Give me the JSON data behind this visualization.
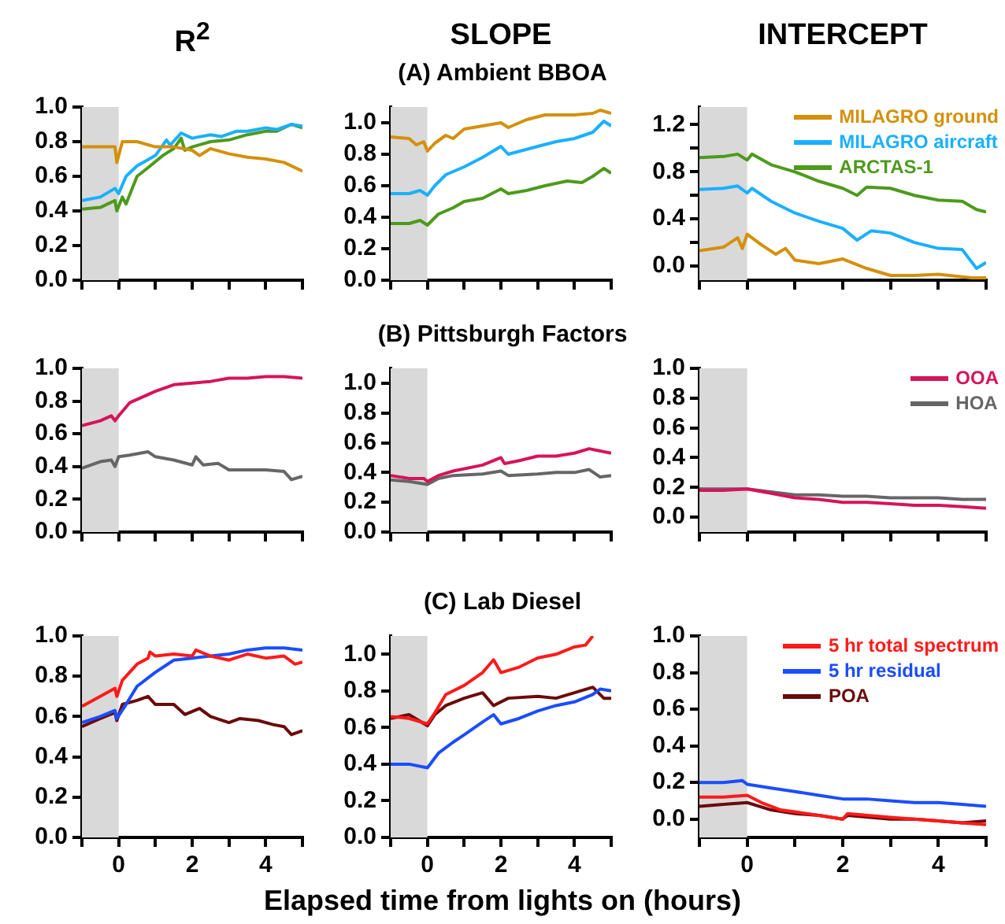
{
  "chart_data": [
    {
      "type": "line",
      "title": "R$^{2}$",
      "xlim": [
        -1,
        5
      ],
      "xticks": [
        {
          "value": -1,
          "label": null
        },
        {
          "value": 0,
          "label": null
        },
        {
          "value": 1,
          "label": null
        },
        {
          "value": 2,
          "label": null
        },
        {
          "value": 3,
          "label": null
        },
        {
          "value": 4,
          "label": null
        },
        {
          "value": 5,
          "label": null
        }
      ],
      "ylim": [
        0,
        1
      ],
      "yticks": [
        {
          "value": 0,
          "label": "0.0"
        },
        {
          "value": 0.2,
          "label": "0.2"
        },
        {
          "value": 0.4,
          "label": "0.4"
        },
        {
          "value": 0.6,
          "label": "0.6"
        },
        {
          "value": 0.8,
          "label": "0.8"
        },
        {
          "value": 1,
          "label": "1.0"
        }
      ],
      "tick_labels": "y",
      "grid": false,
      "legend": false,
      "marker": "none",
      "line_style": "solid",
      "bands": [
        {
          "axis": "x",
          "from": -1,
          "to": 0,
          "color": "#d9d9d9"
        }
      ],
      "series": [
        {
          "color": "#d4900a",
          "x": [
            -1,
            -0.5,
            -0.1,
            -0.05,
            0.1,
            0.5,
            1,
            1.5,
            2,
            2.2,
            2.5,
            3,
            3.5,
            4,
            4.5,
            5
          ],
          "values": [
            0.77,
            0.77,
            0.77,
            0.68,
            0.8,
            0.8,
            0.77,
            0.77,
            0.75,
            0.72,
            0.76,
            0.73,
            0.71,
            0.7,
            0.68,
            0.63
          ]
        },
        {
          "color": "#1ab0ff",
          "x": [
            -1,
            -0.5,
            -0.1,
            0,
            0.2,
            0.5,
            1,
            1.3,
            1.4,
            1.7,
            2,
            2.5,
            2.8,
            3.2,
            3.5,
            4,
            4.3,
            4.7,
            5
          ],
          "values": [
            0.46,
            0.48,
            0.53,
            0.5,
            0.6,
            0.66,
            0.72,
            0.81,
            0.78,
            0.85,
            0.82,
            0.84,
            0.83,
            0.86,
            0.86,
            0.88,
            0.87,
            0.9,
            0.89
          ]
        },
        {
          "color": "#4d9a1c",
          "x": [
            -1,
            -0.5,
            -0.1,
            -0.05,
            0.1,
            0.2,
            0.5,
            0.8,
            1.2,
            1.5,
            1.7,
            1.8,
            2,
            2.5,
            3,
            3.5,
            4,
            4.3,
            4.7,
            5
          ],
          "values": [
            0.41,
            0.42,
            0.46,
            0.4,
            0.48,
            0.44,
            0.6,
            0.65,
            0.72,
            0.76,
            0.82,
            0.75,
            0.77,
            0.8,
            0.81,
            0.84,
            0.86,
            0.86,
            0.9,
            0.88
          ]
        }
      ]
    },
    {
      "type": "line",
      "title": "SLOPE",
      "subtitle": "(A)  Ambient BBOA",
      "xlim": [
        -1,
        5
      ],
      "xticks": [
        {
          "value": -1,
          "label": null
        },
        {
          "value": 0,
          "label": null
        },
        {
          "value": 1,
          "label": null
        },
        {
          "value": 2,
          "label": null
        },
        {
          "value": 3,
          "label": null
        },
        {
          "value": 4,
          "label": null
        },
        {
          "value": 5,
          "label": null
        }
      ],
      "ylim": [
        0,
        1.1
      ],
      "yticks": [
        {
          "value": 0,
          "label": "0.0"
        },
        {
          "value": 0.2,
          "label": "0.2"
        },
        {
          "value": 0.4,
          "label": "0.4"
        },
        {
          "value": 0.6,
          "label": "0.6"
        },
        {
          "value": 0.8,
          "label": "0.8"
        },
        {
          "value": 1,
          "label": "1.0"
        }
      ],
      "tick_labels": "y",
      "grid": false,
      "legend": false,
      "marker": "none",
      "line_style": "solid",
      "bands": [
        {
          "axis": "x",
          "from": -1,
          "to": 0,
          "color": "#d9d9d9"
        }
      ],
      "series": [
        {
          "color": "#d4900a",
          "x": [
            -1,
            -0.5,
            -0.3,
            -0.1,
            0,
            0.2,
            0.5,
            0.7,
            1,
            1.5,
            2,
            2.2,
            2.7,
            3.2,
            3.5,
            4,
            4.5,
            4.7,
            5
          ],
          "values": [
            0.91,
            0.9,
            0.86,
            0.88,
            0.82,
            0.87,
            0.92,
            0.9,
            0.96,
            0.98,
            1.0,
            0.97,
            1.02,
            1.05,
            1.05,
            1.05,
            1.06,
            1.08,
            1.06
          ]
        },
        {
          "color": "#1ab0ff",
          "x": [
            -1,
            -0.5,
            -0.2,
            0,
            0.2,
            0.5,
            1,
            1.5,
            2,
            2.2,
            3,
            3.5,
            4,
            4.5,
            4.8,
            5
          ],
          "values": [
            0.55,
            0.55,
            0.57,
            0.54,
            0.6,
            0.67,
            0.72,
            0.78,
            0.85,
            0.8,
            0.85,
            0.88,
            0.9,
            0.94,
            1.01,
            0.98
          ]
        },
        {
          "color": "#4d9a1c",
          "x": [
            -1,
            -0.5,
            -0.2,
            0,
            0.3,
            0.7,
            1,
            1.5,
            2,
            2.2,
            2.7,
            3.2,
            3.8,
            4.2,
            4.5,
            4.8,
            5
          ],
          "values": [
            0.36,
            0.36,
            0.38,
            0.35,
            0.42,
            0.46,
            0.5,
            0.52,
            0.58,
            0.55,
            0.57,
            0.6,
            0.63,
            0.62,
            0.66,
            0.71,
            0.68
          ]
        }
      ]
    },
    {
      "type": "line",
      "title": "INTERCEPT",
      "xlim": [
        -1,
        5
      ],
      "xticks": [
        {
          "value": -1,
          "label": null
        },
        {
          "value": 0,
          "label": null
        },
        {
          "value": 1,
          "label": null
        },
        {
          "value": 2,
          "label": null
        },
        {
          "value": 3,
          "label": null
        },
        {
          "value": 4,
          "label": null
        },
        {
          "value": 5,
          "label": null
        }
      ],
      "ylim": [
        -0.12,
        1.35
      ],
      "yticks": [
        {
          "value": 0,
          "label": "0.0"
        },
        {
          "value": 0.2,
          "label": null
        },
        {
          "value": 0.4,
          "label": "0.4"
        },
        {
          "value": 0.6,
          "label": null
        },
        {
          "value": 0.8,
          "label": "0.8"
        },
        {
          "value": 1,
          "label": null
        },
        {
          "value": 1.2,
          "label": "1.2"
        }
      ],
      "tick_labels": "y",
      "grid": false,
      "legend": "top right",
      "marker": "none",
      "line_style": "solid",
      "bands": [
        {
          "axis": "x",
          "from": -1,
          "to": 0,
          "color": "#d9d9d9"
        }
      ],
      "series": [
        {
          "name": "MILAGRO ground",
          "color": "#d4900a",
          "x": [
            -1,
            -0.5,
            -0.2,
            -0.1,
            0,
            0.3,
            0.6,
            0.8,
            1,
            1.5,
            2,
            2.5,
            3,
            3.5,
            4,
            4.7,
            5
          ],
          "values": [
            0.13,
            0.16,
            0.24,
            0.15,
            0.27,
            0.18,
            0.1,
            0.15,
            0.05,
            0.02,
            0.06,
            -0.02,
            -0.08,
            -0.08,
            -0.07,
            -0.1,
            -0.1
          ]
        },
        {
          "name": "MILAGRO aircraft",
          "color": "#1ab0ff",
          "x": [
            -1,
            -0.5,
            -0.2,
            0,
            0.1,
            0.5,
            1,
            1.5,
            2,
            2.3,
            2.6,
            3,
            3.5,
            4,
            4.5,
            4.8,
            5
          ],
          "values": [
            0.65,
            0.66,
            0.68,
            0.62,
            0.66,
            0.55,
            0.45,
            0.38,
            0.32,
            0.22,
            0.3,
            0.28,
            0.2,
            0.15,
            0.14,
            -0.02,
            0.03
          ]
        },
        {
          "name": "ARCTAS-1",
          "color": "#4d9a1c",
          "x": [
            -1,
            -0.5,
            -0.2,
            0,
            0.1,
            0.5,
            1,
            1.5,
            2,
            2.3,
            2.5,
            3,
            3.5,
            4,
            4.5,
            4.8,
            5
          ],
          "values": [
            0.92,
            0.93,
            0.95,
            0.9,
            0.95,
            0.86,
            0.8,
            0.72,
            0.66,
            0.6,
            0.67,
            0.66,
            0.6,
            0.56,
            0.55,
            0.48,
            0.46
          ]
        }
      ]
    },
    {
      "type": "line",
      "xlim": [
        -1,
        5
      ],
      "xticks": [
        {
          "value": -1,
          "label": null
        },
        {
          "value": 0,
          "label": null
        },
        {
          "value": 1,
          "label": null
        },
        {
          "value": 2,
          "label": null
        },
        {
          "value": 3,
          "label": null
        },
        {
          "value": 4,
          "label": null
        },
        {
          "value": 5,
          "label": null
        }
      ],
      "ylim": [
        0,
        1
      ],
      "yticks": [
        {
          "value": 0,
          "label": "0.0"
        },
        {
          "value": 0.2,
          "label": "0.2"
        },
        {
          "value": 0.4,
          "label": "0.4"
        },
        {
          "value": 0.6,
          "label": "0.6"
        },
        {
          "value": 0.8,
          "label": "0.8"
        },
        {
          "value": 1,
          "label": "1.0"
        }
      ],
      "tick_labels": "y",
      "grid": false,
      "legend": false,
      "marker": "none",
      "line_style": "solid",
      "bands": [
        {
          "axis": "x",
          "from": -1,
          "to": 0,
          "color": "#d9d9d9"
        }
      ],
      "series": [
        {
          "color": "#d6145a",
          "x": [
            -1,
            -0.5,
            -0.2,
            -0.1,
            0,
            0.3,
            0.7,
            1,
            1.5,
            2,
            2.5,
            3,
            3.5,
            4,
            4.5,
            5
          ],
          "values": [
            0.65,
            0.68,
            0.71,
            0.68,
            0.71,
            0.79,
            0.83,
            0.86,
            0.9,
            0.91,
            0.92,
            0.94,
            0.94,
            0.95,
            0.95,
            0.94
          ]
        },
        {
          "color": "#666666",
          "x": [
            -1,
            -0.5,
            -0.2,
            -0.1,
            0,
            0.3,
            0.8,
            1,
            1.5,
            2,
            2.1,
            2.3,
            2.7,
            3,
            3.5,
            4,
            4.5,
            4.7,
            5
          ],
          "values": [
            0.39,
            0.43,
            0.44,
            0.4,
            0.46,
            0.47,
            0.49,
            0.46,
            0.44,
            0.41,
            0.46,
            0.41,
            0.42,
            0.38,
            0.38,
            0.38,
            0.37,
            0.32,
            0.34
          ]
        }
      ]
    },
    {
      "type": "line",
      "subtitle": "(B)  Pittsburgh Factors",
      "xlim": [
        -1,
        5
      ],
      "xticks": [
        {
          "value": -1,
          "label": null
        },
        {
          "value": 0,
          "label": null
        },
        {
          "value": 1,
          "label": null
        },
        {
          "value": 2,
          "label": null
        },
        {
          "value": 3,
          "label": null
        },
        {
          "value": 4,
          "label": null
        },
        {
          "value": 5,
          "label": null
        }
      ],
      "ylim": [
        0,
        1.1
      ],
      "yticks": [
        {
          "value": 0,
          "label": "0.0"
        },
        {
          "value": 0.2,
          "label": "0.2"
        },
        {
          "value": 0.4,
          "label": "0.4"
        },
        {
          "value": 0.6,
          "label": "0.6"
        },
        {
          "value": 0.8,
          "label": "0.8"
        },
        {
          "value": 1,
          "label": "1.0"
        }
      ],
      "tick_labels": "y",
      "grid": false,
      "legend": false,
      "marker": "none",
      "line_style": "solid",
      "bands": [
        {
          "axis": "x",
          "from": -1,
          "to": 0,
          "color": "#d9d9d9"
        }
      ],
      "series": [
        {
          "color": "#d6145a",
          "x": [
            -1,
            -0.5,
            -0.1,
            0,
            0.3,
            0.7,
            1.5,
            2,
            2.1,
            2.5,
            3,
            3.5,
            4,
            4.4,
            5
          ],
          "values": [
            0.38,
            0.36,
            0.36,
            0.34,
            0.38,
            0.41,
            0.45,
            0.5,
            0.46,
            0.48,
            0.51,
            0.51,
            0.53,
            0.56,
            0.53
          ]
        },
        {
          "color": "#666666",
          "x": [
            -1,
            -0.5,
            0,
            0.3,
            0.7,
            1.5,
            2,
            2.2,
            3,
            3.5,
            4,
            4.4,
            4.7,
            5
          ],
          "values": [
            0.35,
            0.34,
            0.32,
            0.36,
            0.38,
            0.39,
            0.41,
            0.38,
            0.39,
            0.4,
            0.4,
            0.42,
            0.37,
            0.38
          ]
        }
      ]
    },
    {
      "type": "line",
      "xlim": [
        -1,
        5
      ],
      "xticks": [
        {
          "value": -1,
          "label": null
        },
        {
          "value": 0,
          "label": null
        },
        {
          "value": 1,
          "label": null
        },
        {
          "value": 2,
          "label": null
        },
        {
          "value": 3,
          "label": null
        },
        {
          "value": 4,
          "label": null
        },
        {
          "value": 5,
          "label": null
        }
      ],
      "ylim": [
        -0.1,
        1
      ],
      "yticks": [
        {
          "value": 0,
          "label": "0.0"
        },
        {
          "value": 0.2,
          "label": "0.2"
        },
        {
          "value": 0.4,
          "label": "0.4"
        },
        {
          "value": 0.6,
          "label": "0.6"
        },
        {
          "value": 0.8,
          "label": "0.8"
        },
        {
          "value": 1,
          "label": "1.0"
        }
      ],
      "tick_labels": "y",
      "grid": false,
      "legend": "top right",
      "marker": "none",
      "line_style": "solid",
      "bands": [
        {
          "axis": "x",
          "from": -1,
          "to": 0,
          "color": "#d9d9d9"
        }
      ],
      "series": [
        {
          "name": "OOA",
          "color": "#d6145a",
          "x": [
            -1,
            -0.5,
            0,
            0.5,
            1,
            1.5,
            2,
            2.5,
            3,
            3.5,
            4,
            4.5,
            5
          ],
          "values": [
            0.18,
            0.18,
            0.19,
            0.16,
            0.13,
            0.12,
            0.1,
            0.1,
            0.09,
            0.08,
            0.08,
            0.07,
            0.06
          ]
        },
        {
          "name": "HOA",
          "color": "#666666",
          "x": [
            -1,
            -0.5,
            0,
            0.5,
            1,
            1.5,
            2,
            2.5,
            3,
            3.5,
            4,
            4.5,
            5
          ],
          "values": [
            0.19,
            0.19,
            0.19,
            0.17,
            0.15,
            0.15,
            0.14,
            0.14,
            0.13,
            0.13,
            0.13,
            0.12,
            0.12
          ]
        }
      ]
    },
    {
      "type": "line",
      "xlim": [
        -1,
        5
      ],
      "xticks": [
        {
          "value": -1,
          "label": null
        },
        {
          "value": 0,
          "label": "0"
        },
        {
          "value": 1,
          "label": null
        },
        {
          "value": 2,
          "label": "2"
        },
        {
          "value": 3,
          "label": null
        },
        {
          "value": 4,
          "label": "4"
        },
        {
          "value": 5,
          "label": null
        }
      ],
      "ylim": [
        0,
        1
      ],
      "yticks": [
        {
          "value": 0,
          "label": "0.0"
        },
        {
          "value": 0.2,
          "label": "0.2"
        },
        {
          "value": 0.4,
          "label": "0.4"
        },
        {
          "value": 0.6,
          "label": "0.6"
        },
        {
          "value": 0.8,
          "label": "0.8"
        },
        {
          "value": 1,
          "label": "1.0"
        }
      ],
      "grid": false,
      "legend": false,
      "marker": "none",
      "line_style": "solid",
      "bands": [
        {
          "axis": "x",
          "from": -1,
          "to": 0,
          "color": "#d9d9d9"
        }
      ],
      "series": [
        {
          "color": "#ff1a1a",
          "x": [
            -1,
            -0.5,
            -0.1,
            -0.05,
            0.1,
            0.5,
            0.8,
            0.85,
            1,
            1.5,
            2,
            2.1,
            2.5,
            3,
            3.5,
            4,
            4.5,
            4.8,
            5
          ],
          "values": [
            0.65,
            0.7,
            0.74,
            0.7,
            0.78,
            0.86,
            0.89,
            0.92,
            0.9,
            0.91,
            0.9,
            0.93,
            0.9,
            0.88,
            0.91,
            0.89,
            0.9,
            0.86,
            0.87
          ]
        },
        {
          "color": "#1a4dff",
          "x": [
            -1,
            -0.5,
            -0.1,
            -0.05,
            0.2,
            0.5,
            1,
            1.5,
            2,
            2.5,
            3,
            3.5,
            4,
            4.5,
            5
          ],
          "values": [
            0.57,
            0.6,
            0.63,
            0.59,
            0.66,
            0.75,
            0.82,
            0.88,
            0.89,
            0.9,
            0.91,
            0.93,
            0.94,
            0.94,
            0.93
          ]
        },
        {
          "color": "#6b0a0a",
          "x": [
            -1,
            -0.5,
            -0.1,
            -0.05,
            0.1,
            0.5,
            0.8,
            1,
            1.5,
            1.8,
            2.2,
            2.5,
            3,
            3.3,
            3.8,
            4.2,
            4.5,
            4.7,
            5
          ],
          "values": [
            0.55,
            0.59,
            0.62,
            0.58,
            0.66,
            0.68,
            0.7,
            0.66,
            0.66,
            0.61,
            0.64,
            0.6,
            0.57,
            0.59,
            0.58,
            0.56,
            0.55,
            0.51,
            0.53
          ]
        }
      ]
    },
    {
      "type": "line",
      "subtitle": "(C)  Lab Diesel",
      "xlabel": "Elapsed time from lights on (hours)",
      "xlim": [
        -1,
        5
      ],
      "xticks": [
        {
          "value": -1,
          "label": null
        },
        {
          "value": 0,
          "label": "0"
        },
        {
          "value": 1,
          "label": null
        },
        {
          "value": 2,
          "label": "2"
        },
        {
          "value": 3,
          "label": null
        },
        {
          "value": 4,
          "label": "4"
        },
        {
          "value": 5,
          "label": null
        }
      ],
      "ylim": [
        0,
        1.1
      ],
      "yticks": [
        {
          "value": 0,
          "label": "0.0"
        },
        {
          "value": 0.2,
          "label": "0.2"
        },
        {
          "value": 0.4,
          "label": "0.4"
        },
        {
          "value": 0.6,
          "label": "0.6"
        },
        {
          "value": 0.8,
          "label": "0.8"
        },
        {
          "value": 1,
          "label": "1.0"
        }
      ],
      "grid": false,
      "legend": false,
      "marker": "none",
      "line_style": "solid",
      "bands": [
        {
          "axis": "x",
          "from": -1,
          "to": 0,
          "color": "#d9d9d9"
        }
      ],
      "series": [
        {
          "color": "#ff1a1a",
          "x": [
            -1,
            -0.5,
            0,
            0.2,
            0.5,
            1,
            1.5,
            1.8,
            2,
            2.5,
            3,
            3.5,
            4,
            4.3,
            4.5
          ],
          "values": [
            0.66,
            0.65,
            0.62,
            0.68,
            0.78,
            0.83,
            0.9,
            0.97,
            0.9,
            0.93,
            0.98,
            1.0,
            1.04,
            1.05,
            1.1
          ]
        },
        {
          "color": "#1a4dff",
          "x": [
            -1,
            -0.5,
            0,
            0.3,
            0.7,
            1,
            1.5,
            1.8,
            2,
            2.5,
            3,
            3.5,
            4,
            4.5,
            4.7,
            5
          ],
          "values": [
            0.4,
            0.4,
            0.38,
            0.46,
            0.52,
            0.56,
            0.63,
            0.67,
            0.62,
            0.65,
            0.69,
            0.72,
            0.74,
            0.78,
            0.81,
            0.8
          ]
        },
        {
          "color": "#6b0a0a",
          "x": [
            -1,
            -0.5,
            0,
            0.2,
            0.5,
            1,
            1.5,
            1.8,
            2.2,
            3,
            3.5,
            4,
            4.5,
            4.8,
            5
          ],
          "values": [
            0.65,
            0.67,
            0.61,
            0.67,
            0.72,
            0.76,
            0.79,
            0.72,
            0.76,
            0.77,
            0.76,
            0.79,
            0.82,
            0.76,
            0.76
          ]
        }
      ]
    },
    {
      "type": "line",
      "xlim": [
        -1,
        5
      ],
      "xticks": [
        {
          "value": -1,
          "label": null
        },
        {
          "value": 0,
          "label": "0"
        },
        {
          "value": 1,
          "label": null
        },
        {
          "value": 2,
          "label": "2"
        },
        {
          "value": 3,
          "label": null
        },
        {
          "value": 4,
          "label": "4"
        },
        {
          "value": 5,
          "label": null
        }
      ],
      "ylim": [
        -0.1,
        1
      ],
      "yticks": [
        {
          "value": 0,
          "label": "0.0"
        },
        {
          "value": 0.2,
          "label": "0.2"
        },
        {
          "value": 0.4,
          "label": "0.4"
        },
        {
          "value": 0.6,
          "label": "0.6"
        },
        {
          "value": 0.8,
          "label": "0.8"
        },
        {
          "value": 1,
          "label": "1.0"
        }
      ],
      "grid": false,
      "legend": "top right",
      "marker": "none",
      "line_style": "solid",
      "bands": [
        {
          "axis": "x",
          "from": -1,
          "to": 0,
          "color": "#d9d9d9"
        }
      ],
      "series": [
        {
          "name": "5 hr total spectrum",
          "color": "#ff1a1a",
          "x": [
            -1,
            -0.5,
            0,
            0.3,
            0.7,
            1,
            1.5,
            2,
            2.1,
            3,
            3.5,
            4,
            4.5,
            5
          ],
          "values": [
            0.12,
            0.12,
            0.13,
            0.09,
            0.05,
            0.04,
            0.02,
            0.0,
            0.03,
            0.01,
            0.0,
            -0.01,
            -0.02,
            -0.03
          ]
        },
        {
          "name": "5 hr residual",
          "color": "#1a4dff",
          "x": [
            -1,
            -0.5,
            -0.1,
            0,
            0.5,
            1,
            1.5,
            2,
            2.5,
            3,
            3.5,
            4,
            4.5,
            5
          ],
          "values": [
            0.2,
            0.2,
            0.21,
            0.19,
            0.17,
            0.15,
            0.13,
            0.11,
            0.11,
            0.1,
            0.09,
            0.09,
            0.08,
            0.07
          ]
        },
        {
          "name": "POA",
          "color": "#6b0a0a",
          "x": [
            -1,
            -0.5,
            0,
            0.5,
            1,
            1.5,
            2,
            2.1,
            3,
            3.5,
            4,
            4.5,
            5
          ],
          "values": [
            0.07,
            0.08,
            0.09,
            0.05,
            0.03,
            0.02,
            0.0,
            0.02,
            0.0,
            0.0,
            -0.01,
            -0.02,
            -0.01
          ]
        }
      ]
    }
  ]
}
